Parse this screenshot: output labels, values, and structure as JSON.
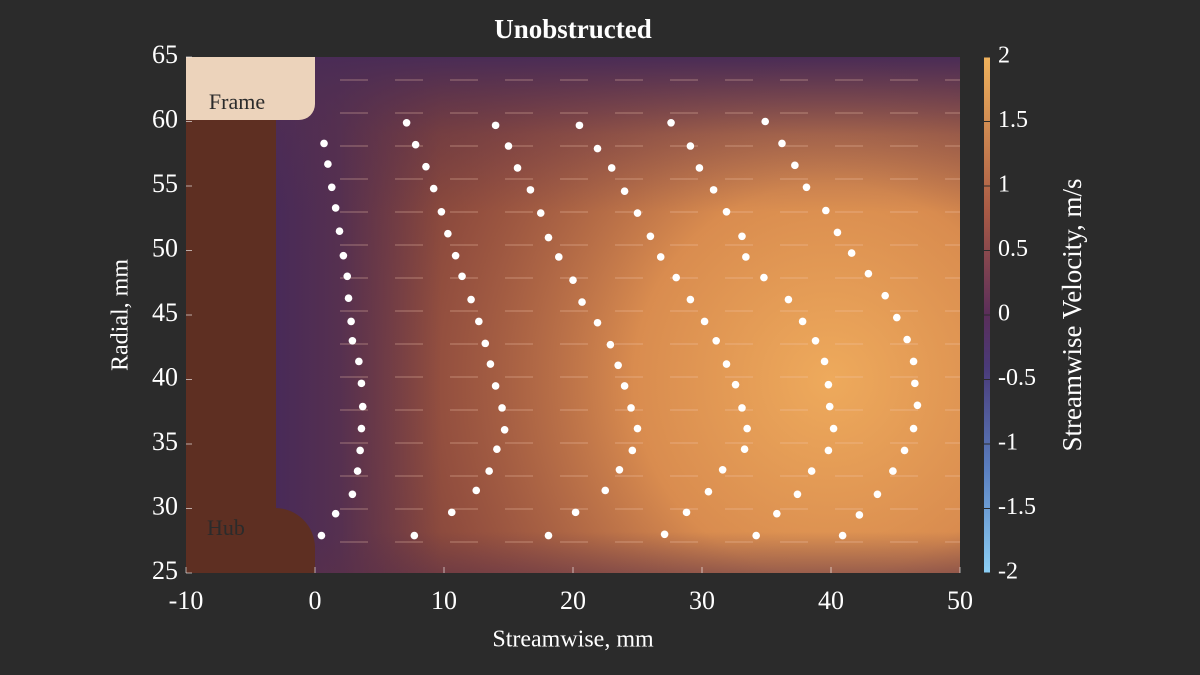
{
  "chart_data": {
    "type": "scatter",
    "title": "Unobstructed",
    "x_label": "Streamwise, mm",
    "y_label": "Radial, mm",
    "xlim": [
      -10,
      50
    ],
    "xticks": [
      -10,
      0,
      10,
      20,
      30,
      40,
      50
    ],
    "ylim": [
      25,
      65
    ],
    "yticks": [
      25,
      30,
      35,
      40,
      45,
      50,
      55,
      60,
      65
    ],
    "annotations": [
      "Frame",
      "Hub"
    ],
    "series": [
      {
        "color": "#ffffff",
        "x": [
          0.7,
          1.0,
          1.3,
          1.6,
          1.9,
          2.2,
          2.5,
          2.6,
          2.8,
          2.9,
          3.4,
          3.6,
          3.7,
          3.6,
          3.5,
          3.3,
          2.9,
          1.6,
          0.5,
          7.1,
          7.8,
          8.6,
          9.2,
          9.8,
          10.3,
          10.9,
          11.4,
          12.1,
          12.7,
          13.2,
          13.6,
          14.0,
          14.5,
          14.7,
          14.1,
          13.5,
          12.5,
          10.6,
          7.7,
          14.0,
          15.0,
          15.7,
          16.7,
          17.5,
          18.1,
          18.9,
          20.0,
          20.7,
          21.9,
          22.9,
          23.5,
          24.0,
          24.5,
          25.0,
          24.6,
          23.6,
          22.5,
          20.2,
          18.1,
          20.5,
          21.9,
          23.0,
          24.0,
          25.0,
          26.0,
          26.8,
          28.0,
          29.1,
          30.2,
          31.1,
          31.9,
          32.6,
          33.1,
          33.5,
          33.3,
          31.6,
          30.5,
          28.8,
          27.1,
          27.6,
          29.1,
          29.8,
          30.9,
          31.9,
          33.1,
          33.4,
          34.8,
          36.7,
          37.8,
          38.8,
          39.5,
          39.8,
          39.9,
          40.2,
          39.8,
          38.5,
          37.4,
          35.8,
          34.2,
          34.9,
          36.2,
          37.2,
          38.1,
          39.6,
          40.5,
          41.6,
          42.9,
          44.2,
          45.1,
          45.9,
          46.4,
          46.5,
          46.7,
          46.4,
          45.7,
          44.8,
          43.6,
          42.2,
          40.9
        ],
        "values": [
          58.3,
          56.7,
          54.9,
          53.3,
          51.5,
          49.6,
          48.0,
          46.3,
          44.5,
          43.0,
          41.4,
          39.7,
          37.9,
          36.2,
          34.5,
          32.9,
          31.1,
          29.6,
          27.9,
          59.9,
          58.2,
          56.5,
          54.8,
          53.0,
          51.3,
          49.6,
          48.0,
          46.2,
          44.5,
          42.8,
          41.2,
          39.5,
          37.8,
          36.1,
          34.6,
          32.9,
          31.4,
          29.7,
          27.9,
          59.7,
          58.1,
          56.4,
          54.7,
          52.9,
          51.0,
          49.5,
          47.7,
          46.0,
          44.4,
          42.7,
          41.1,
          39.5,
          37.8,
          36.2,
          34.5,
          33.0,
          31.4,
          29.7,
          27.9,
          59.7,
          57.9,
          56.4,
          54.6,
          52.9,
          51.1,
          49.5,
          47.9,
          46.2,
          44.5,
          43.0,
          41.2,
          39.6,
          37.8,
          36.2,
          34.6,
          33.0,
          31.3,
          29.7,
          28.0,
          59.9,
          58.1,
          56.4,
          54.7,
          53.0,
          51.1,
          49.5,
          47.9,
          46.2,
          44.5,
          43.0,
          41.4,
          39.6,
          37.9,
          36.2,
          34.5,
          32.9,
          31.1,
          29.6,
          27.9,
          60.0,
          58.3,
          56.6,
          54.9,
          53.1,
          51.4,
          49.8,
          48.2,
          46.5,
          44.8,
          43.1,
          41.4,
          39.7,
          38.0,
          36.2,
          34.5,
          32.9,
          31.1,
          29.5,
          27.9
        ]
      }
    ],
    "colorbar": {
      "label": "Streamwise Velocity, m/s",
      "lim": [
        -2,
        2
      ],
      "ticks": [
        2,
        1.5,
        1,
        0.5,
        0,
        -0.5,
        -1,
        -1.5,
        -2
      ]
    }
  }
}
